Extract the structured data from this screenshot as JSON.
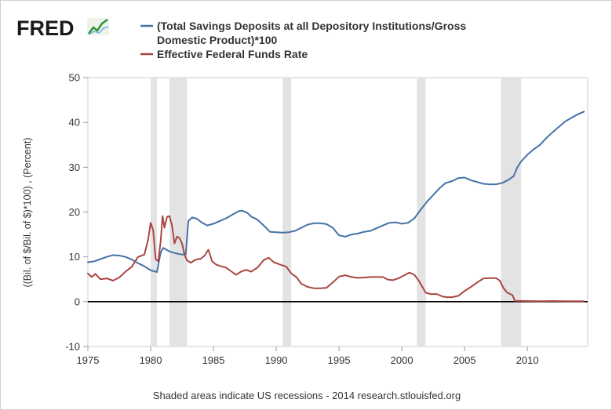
{
  "logo": {
    "text": "FRED",
    "icon": "line-chart-icon",
    "color": "#1a1a1a",
    "icon_color": "#2a8f35"
  },
  "legend": {
    "items": [
      {
        "series": "savings",
        "line1": "(Total Savings Deposits at all Depository Institutions/Gross",
        "line2": "Domestic Product)*100",
        "color": "#4572a7"
      },
      {
        "series": "fedfunds",
        "line1": "Effective Federal Funds Rate",
        "color": "#aa4643"
      }
    ]
  },
  "footer": {
    "note": "Shaded areas indicate US recessions - 2014 research.stlouisfed.org"
  },
  "chart_data": {
    "type": "line",
    "title": "",
    "xlabel": "",
    "ylabel": "((Bil. of $/Bil. of $)*100) , (Percent)",
    "xlim": [
      1975,
      2014.8
    ],
    "ylim": [
      -10,
      50
    ],
    "x_ticks": [
      1975,
      1980,
      1985,
      1990,
      1995,
      2000,
      2005,
      2010
    ],
    "y_ticks": [
      -10,
      0,
      10,
      20,
      30,
      40,
      50
    ],
    "zero_line": true,
    "grid": false,
    "recessions": [
      [
        1980.0,
        1980.5
      ],
      [
        1981.5,
        1982.9
      ],
      [
        1990.5,
        1991.2
      ],
      [
        2001.2,
        2001.9
      ],
      [
        2007.9,
        2009.5
      ]
    ],
    "series": [
      {
        "name": "(Total Savings Deposits at all Depository Institutions/Gross Domestic Product)*100",
        "color": "#4572a7",
        "points": [
          [
            1975.0,
            8.8
          ],
          [
            1975.5,
            9.0
          ],
          [
            1976.0,
            9.5
          ],
          [
            1976.5,
            10.0
          ],
          [
            1977.0,
            10.4
          ],
          [
            1977.5,
            10.3
          ],
          [
            1978.0,
            10.0
          ],
          [
            1978.5,
            9.4
          ],
          [
            1979.0,
            8.6
          ],
          [
            1979.5,
            7.9
          ],
          [
            1980.0,
            7.0
          ],
          [
            1980.5,
            6.6
          ],
          [
            1980.8,
            11.0
          ],
          [
            1981.0,
            12.0
          ],
          [
            1981.5,
            11.2
          ],
          [
            1982.0,
            10.8
          ],
          [
            1982.5,
            10.5
          ],
          [
            1982.8,
            10.6
          ],
          [
            1983.0,
            18.0
          ],
          [
            1983.3,
            18.8
          ],
          [
            1983.7,
            18.5
          ],
          [
            1984.0,
            17.8
          ],
          [
            1984.5,
            17.0
          ],
          [
            1985.0,
            17.4
          ],
          [
            1985.5,
            18.0
          ],
          [
            1986.0,
            18.6
          ],
          [
            1986.5,
            19.4
          ],
          [
            1987.0,
            20.2
          ],
          [
            1987.3,
            20.3
          ],
          [
            1987.7,
            19.8
          ],
          [
            1988.0,
            19.0
          ],
          [
            1988.5,
            18.3
          ],
          [
            1989.0,
            17.0
          ],
          [
            1989.5,
            15.6
          ],
          [
            1990.0,
            15.5
          ],
          [
            1990.5,
            15.4
          ],
          [
            1991.0,
            15.5
          ],
          [
            1991.5,
            15.8
          ],
          [
            1992.0,
            16.5
          ],
          [
            1992.5,
            17.2
          ],
          [
            1993.0,
            17.5
          ],
          [
            1993.5,
            17.5
          ],
          [
            1994.0,
            17.3
          ],
          [
            1994.5,
            16.5
          ],
          [
            1995.0,
            14.8
          ],
          [
            1995.5,
            14.5
          ],
          [
            1996.0,
            15.0
          ],
          [
            1996.5,
            15.2
          ],
          [
            1997.0,
            15.6
          ],
          [
            1997.5,
            15.8
          ],
          [
            1998.0,
            16.4
          ],
          [
            1998.5,
            17.0
          ],
          [
            1999.0,
            17.6
          ],
          [
            1999.5,
            17.7
          ],
          [
            2000.0,
            17.4
          ],
          [
            2000.5,
            17.6
          ],
          [
            2001.0,
            18.6
          ],
          [
            2001.5,
            20.5
          ],
          [
            2002.0,
            22.3
          ],
          [
            2002.5,
            23.8
          ],
          [
            2003.0,
            25.3
          ],
          [
            2003.5,
            26.5
          ],
          [
            2004.0,
            26.9
          ],
          [
            2004.5,
            27.6
          ],
          [
            2005.0,
            27.7
          ],
          [
            2005.5,
            27.1
          ],
          [
            2006.0,
            26.7
          ],
          [
            2006.5,
            26.3
          ],
          [
            2007.0,
            26.2
          ],
          [
            2007.5,
            26.2
          ],
          [
            2008.0,
            26.5
          ],
          [
            2008.5,
            27.2
          ],
          [
            2008.9,
            28.0
          ],
          [
            2009.2,
            30.0
          ],
          [
            2009.5,
            31.3
          ],
          [
            2010.0,
            32.8
          ],
          [
            2010.5,
            34.0
          ],
          [
            2011.0,
            35.0
          ],
          [
            2011.5,
            36.5
          ],
          [
            2012.0,
            37.8
          ],
          [
            2012.5,
            39.0
          ],
          [
            2013.0,
            40.2
          ],
          [
            2013.5,
            41.0
          ],
          [
            2014.0,
            41.8
          ],
          [
            2014.5,
            42.4
          ]
        ]
      },
      {
        "name": "Effective Federal Funds Rate",
        "color": "#aa4643",
        "points": [
          [
            1975.0,
            6.3
          ],
          [
            1975.3,
            5.5
          ],
          [
            1975.6,
            6.2
          ],
          [
            1976.0,
            5.0
          ],
          [
            1976.5,
            5.2
          ],
          [
            1977.0,
            4.7
          ],
          [
            1977.5,
            5.4
          ],
          [
            1978.0,
            6.7
          ],
          [
            1978.5,
            7.8
          ],
          [
            1979.0,
            10.0
          ],
          [
            1979.5,
            10.5
          ],
          [
            1979.8,
            13.8
          ],
          [
            1980.0,
            17.6
          ],
          [
            1980.2,
            16.0
          ],
          [
            1980.4,
            9.5
          ],
          [
            1980.6,
            9.0
          ],
          [
            1980.8,
            13.5
          ],
          [
            1980.95,
            19.1
          ],
          [
            1981.1,
            16.5
          ],
          [
            1981.3,
            18.9
          ],
          [
            1981.5,
            19.1
          ],
          [
            1981.7,
            17.0
          ],
          [
            1981.9,
            13.0
          ],
          [
            1982.1,
            14.5
          ],
          [
            1982.3,
            14.2
          ],
          [
            1982.5,
            13.0
          ],
          [
            1982.7,
            10.5
          ],
          [
            1982.9,
            9.2
          ],
          [
            1983.2,
            8.7
          ],
          [
            1983.6,
            9.4
          ],
          [
            1984.0,
            9.6
          ],
          [
            1984.3,
            10.3
          ],
          [
            1984.6,
            11.6
          ],
          [
            1984.9,
            9.0
          ],
          [
            1985.2,
            8.3
          ],
          [
            1985.6,
            7.9
          ],
          [
            1986.0,
            7.6
          ],
          [
            1986.4,
            6.8
          ],
          [
            1986.8,
            6.0
          ],
          [
            1987.2,
            6.7
          ],
          [
            1987.6,
            7.1
          ],
          [
            1988.0,
            6.7
          ],
          [
            1988.5,
            7.6
          ],
          [
            1989.0,
            9.3
          ],
          [
            1989.4,
            9.8
          ],
          [
            1989.8,
            8.8
          ],
          [
            1990.3,
            8.3
          ],
          [
            1990.8,
            7.8
          ],
          [
            1991.2,
            6.3
          ],
          [
            1991.6,
            5.5
          ],
          [
            1992.0,
            4.0
          ],
          [
            1992.5,
            3.3
          ],
          [
            1993.0,
            3.0
          ],
          [
            1993.5,
            3.0
          ],
          [
            1994.0,
            3.1
          ],
          [
            1994.5,
            4.3
          ],
          [
            1995.0,
            5.6
          ],
          [
            1995.5,
            5.9
          ],
          [
            1996.0,
            5.5
          ],
          [
            1996.5,
            5.3
          ],
          [
            1997.0,
            5.4
          ],
          [
            1997.5,
            5.5
          ],
          [
            1998.0,
            5.5
          ],
          [
            1998.5,
            5.5
          ],
          [
            1998.9,
            4.9
          ],
          [
            1999.3,
            4.8
          ],
          [
            1999.8,
            5.3
          ],
          [
            2000.2,
            5.9
          ],
          [
            2000.6,
            6.5
          ],
          [
            2001.0,
            6.0
          ],
          [
            2001.3,
            4.9
          ],
          [
            2001.6,
            3.5
          ],
          [
            2001.9,
            2.0
          ],
          [
            2002.3,
            1.7
          ],
          [
            2002.8,
            1.7
          ],
          [
            2003.2,
            1.2
          ],
          [
            2003.6,
            1.0
          ],
          [
            2004.0,
            1.0
          ],
          [
            2004.5,
            1.3
          ],
          [
            2005.0,
            2.4
          ],
          [
            2005.5,
            3.3
          ],
          [
            2006.0,
            4.3
          ],
          [
            2006.5,
            5.2
          ],
          [
            2007.0,
            5.25
          ],
          [
            2007.5,
            5.25
          ],
          [
            2007.8,
            4.7
          ],
          [
            2008.1,
            3.0
          ],
          [
            2008.4,
            2.0
          ],
          [
            2008.8,
            1.5
          ],
          [
            2009.0,
            0.2
          ],
          [
            2010.0,
            0.15
          ],
          [
            2011.0,
            0.1
          ],
          [
            2012.0,
            0.15
          ],
          [
            2013.0,
            0.1
          ],
          [
            2014.0,
            0.1
          ],
          [
            2014.5,
            0.1
          ]
        ]
      }
    ]
  }
}
